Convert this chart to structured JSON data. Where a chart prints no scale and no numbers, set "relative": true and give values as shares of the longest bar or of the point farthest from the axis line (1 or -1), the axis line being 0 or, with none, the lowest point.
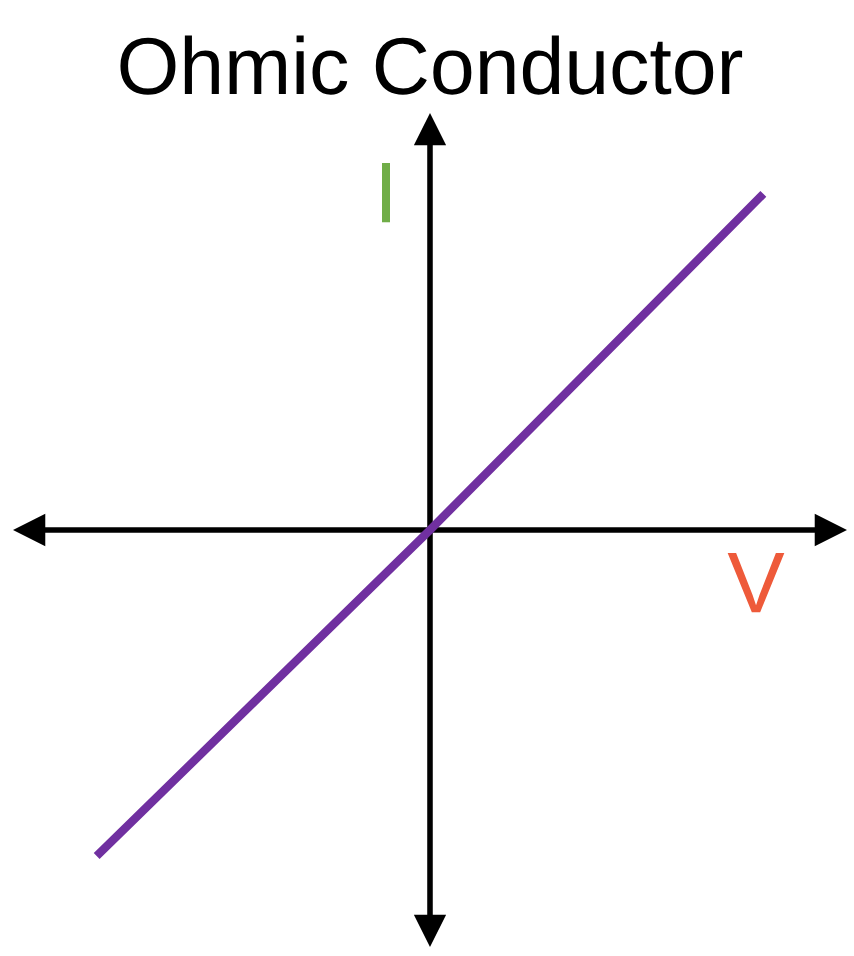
{
  "chart_data": {
    "type": "line",
    "title": "Ohmic Conductor",
    "xlabel": "V",
    "ylabel": "I",
    "categories": [
      null,
      null,
      null
    ],
    "relative": true,
    "series": [
      {
        "color": "#7030a0",
        "values": [
          -0.97,
          0,
          1
        ]
      }
    ],
    "marker": "none",
    "line_style": "solid"
  }
}
